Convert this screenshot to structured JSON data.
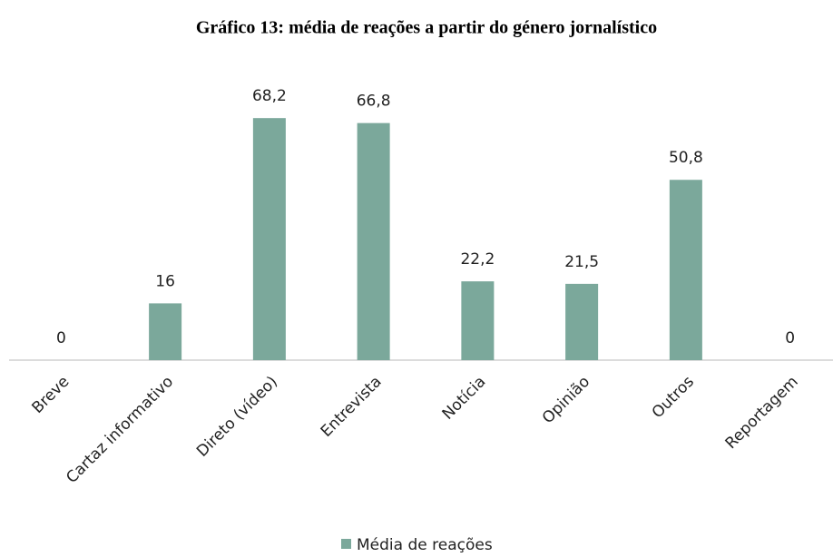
{
  "chart_data": {
    "type": "bar",
    "title": "Gráfico 13: média de reações a partir do género jornalístico",
    "categories": [
      "Breve",
      "Cartaz informativo",
      "Direto (vídeo)",
      "Entrevista",
      "Notícia",
      "Opinião",
      "Outros",
      "Reportagem"
    ],
    "series": [
      {
        "name": "Média de reações",
        "color": "#7ba89b",
        "values": [
          0,
          16,
          68.2,
          66.8,
          22.2,
          21.5,
          50.8,
          0
        ],
        "value_labels": [
          "0",
          "16",
          "68,2",
          "66,8",
          "22,2",
          "21,5",
          "50,8",
          "0"
        ]
      }
    ],
    "ylim": [
      0,
      80
    ],
    "legend": "bottom"
  }
}
